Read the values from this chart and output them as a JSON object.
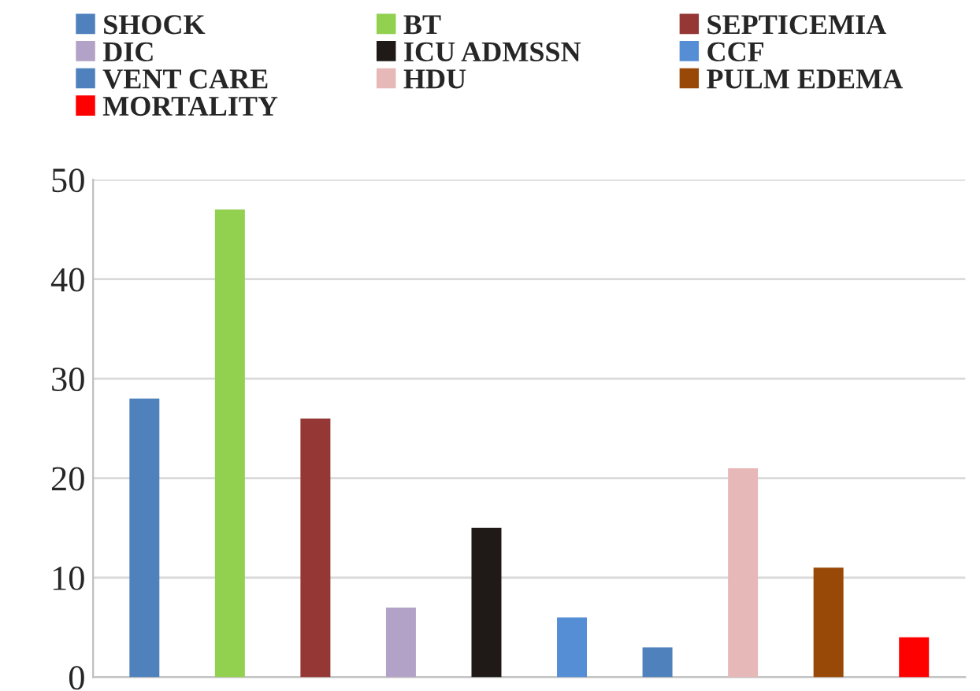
{
  "chart_data": {
    "type": "bar",
    "categories": [
      null,
      null,
      null,
      null,
      null,
      null,
      null,
      null,
      null,
      null
    ],
    "series": [
      {
        "name": "SHOCK",
        "color": "#4f81bd",
        "values": [
          28,
          null,
          null,
          null,
          null,
          null,
          null,
          null,
          null,
          null
        ]
      },
      {
        "name": "BT",
        "color": "#92d050",
        "values": [
          null,
          47,
          null,
          null,
          null,
          null,
          null,
          null,
          null,
          null
        ]
      },
      {
        "name": "SEPTICEMIA",
        "color": "#953735",
        "values": [
          null,
          null,
          26,
          null,
          null,
          null,
          null,
          null,
          null,
          null
        ]
      },
      {
        "name": "DIC",
        "color": "#b3a2c7",
        "values": [
          null,
          null,
          null,
          7,
          null,
          null,
          null,
          null,
          null,
          null
        ]
      },
      {
        "name": "ICU ADMSSN",
        "color": "#1f1a17",
        "values": [
          null,
          null,
          null,
          null,
          15,
          null,
          null,
          null,
          null,
          null
        ]
      },
      {
        "name": "CCF",
        "color": "#558ed5",
        "values": [
          null,
          null,
          null,
          null,
          null,
          6,
          null,
          null,
          null,
          null
        ]
      },
      {
        "name": "VENT CARE",
        "color": "#4f81bd",
        "values": [
          null,
          null,
          null,
          null,
          null,
          null,
          3,
          null,
          null,
          null
        ]
      },
      {
        "name": "HDU",
        "color": "#e6b9b8",
        "values": [
          null,
          null,
          null,
          null,
          null,
          null,
          null,
          21,
          null,
          null
        ]
      },
      {
        "name": "PULM EDEMA",
        "color": "#984807",
        "values": [
          null,
          null,
          null,
          null,
          null,
          null,
          null,
          null,
          11,
          null
        ]
      },
      {
        "name": "MORTALITY",
        "color": "#ff0000",
        "values": [
          null,
          null,
          null,
          null,
          null,
          null,
          null,
          null,
          null,
          4
        ]
      }
    ],
    "ylim": [
      0,
      50
    ],
    "yticks": [
      0,
      10,
      20,
      30,
      40,
      50
    ],
    "grid": "y",
    "legend": "top"
  }
}
